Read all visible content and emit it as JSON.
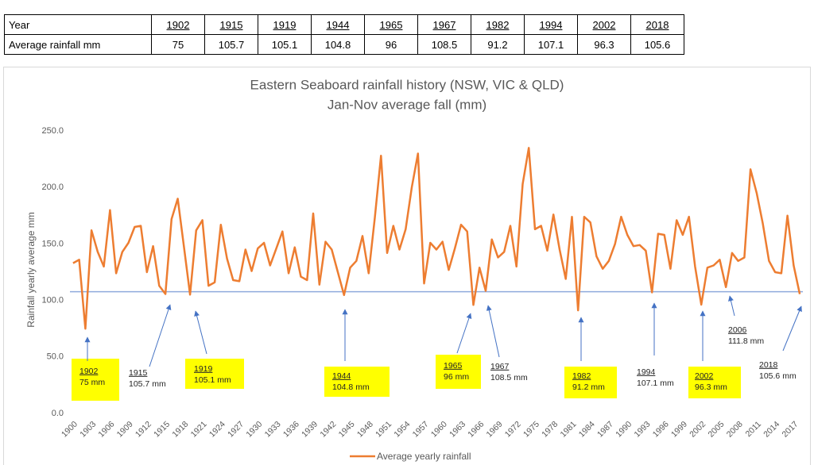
{
  "table": {
    "header": [
      "Year",
      "1902",
      "1915",
      "1919",
      "1944",
      "1965",
      "1967",
      "1982",
      "1994",
      "2002",
      "2018"
    ],
    "rows": [
      [
        "Average rainfall mm",
        75,
        105.7,
        105.1,
        104.8,
        96,
        108.5,
        91.2,
        107.1,
        96.3,
        105.6
      ]
    ]
  },
  "chart_data": {
    "type": "line",
    "title": "Eastern Seaboard rainfall history (NSW, VIC & QLD)",
    "subtitle": "Jan-Nov average fall (mm)",
    "y_label": "Rainfall yearly average mm",
    "x": [
      1900,
      1901,
      1902,
      1903,
      1904,
      1905,
      1906,
      1907,
      1908,
      1909,
      1910,
      1911,
      1912,
      1913,
      1914,
      1915,
      1916,
      1917,
      1918,
      1919,
      1920,
      1921,
      1922,
      1923,
      1924,
      1925,
      1926,
      1927,
      1928,
      1929,
      1930,
      1931,
      1932,
      1933,
      1934,
      1935,
      1936,
      1937,
      1938,
      1939,
      1940,
      1941,
      1942,
      1943,
      1944,
      1945,
      1946,
      1947,
      1948,
      1949,
      1950,
      1951,
      1952,
      1953,
      1954,
      1955,
      1956,
      1957,
      1958,
      1959,
      1960,
      1961,
      1962,
      1963,
      1964,
      1965,
      1966,
      1967,
      1968,
      1969,
      1970,
      1971,
      1972,
      1973,
      1974,
      1975,
      1976,
      1977,
      1978,
      1979,
      1980,
      1981,
      1982,
      1983,
      1984,
      1985,
      1986,
      1987,
      1988,
      1989,
      1990,
      1991,
      1992,
      1993,
      1994,
      1995,
      1996,
      1997,
      1998,
      1999,
      2000,
      2001,
      2002,
      2003,
      2004,
      2005,
      2006,
      2007,
      2008,
      2009,
      2010,
      2011,
      2012,
      2013,
      2014,
      2015,
      2016,
      2017,
      2018
    ],
    "series": [
      {
        "name": "Average yearly rainfall",
        "color": "#ed7d31",
        "values": [
          133,
          136,
          75,
          162,
          143,
          130,
          180,
          124,
          143,
          151,
          165,
          166,
          125,
          148,
          113,
          105.7,
          172,
          190,
          148,
          105.1,
          162,
          171,
          113,
          116,
          167,
          137,
          118,
          117,
          145,
          126,
          146,
          151,
          131,
          146,
          161,
          124,
          147,
          121,
          118,
          177,
          114,
          152,
          145,
          125,
          104.8,
          129,
          135,
          157,
          124,
          173,
          228,
          142,
          166,
          145,
          163,
          200,
          230,
          115,
          151,
          145,
          152,
          127,
          146,
          167,
          161,
          96,
          129,
          108.5,
          154,
          138,
          143,
          166,
          130,
          203,
          235,
          163,
          166,
          144,
          176,
          145,
          119,
          174,
          91.2,
          174,
          169,
          139,
          128,
          135,
          150,
          174,
          158,
          148,
          149,
          144,
          107.1,
          159,
          158,
          128,
          171,
          158,
          174,
          130,
          96.3,
          129,
          131,
          136,
          111.8,
          142,
          135,
          138,
          216,
          195,
          168,
          135,
          125,
          124,
          175,
          131,
          105.6
        ]
      }
    ],
    "xlim": [
      1899.5,
      2018.5
    ],
    "xticks": [
      1900,
      1903,
      1906,
      1909,
      1912,
      1915,
      1918,
      1921,
      1924,
      1927,
      1930,
      1933,
      1936,
      1939,
      1942,
      1945,
      1948,
      1951,
      1954,
      1957,
      1960,
      1963,
      1966,
      1969,
      1972,
      1975,
      1978,
      1981,
      1984,
      1987,
      1990,
      1993,
      1996,
      1999,
      2002,
      2005,
      2008,
      2011,
      2014,
      2017
    ],
    "ylim": [
      0,
      250
    ],
    "yticks": [
      {
        "value": 0,
        "label": "0.0"
      },
      {
        "value": 50,
        "label": "50.0"
      },
      {
        "value": 100,
        "label": "100.0"
      },
      {
        "value": 150,
        "label": "150.0"
      },
      {
        "value": 200,
        "label": "200.0"
      },
      {
        "value": 250,
        "label": "250.0"
      }
    ],
    "grid": false,
    "reference_line": {
      "value": 107.7,
      "color": "#8faadc"
    },
    "legend": "bottom",
    "annotations": [
      {
        "year": "1902",
        "label": "75 mm",
        "highlight": true
      },
      {
        "year": "1915",
        "label": "105.7 mm",
        "highlight": false
      },
      {
        "year": "1919",
        "label": "105.1 mm",
        "highlight": true
      },
      {
        "year": "1944",
        "label": "104.8 mm",
        "highlight": true
      },
      {
        "year": "1965",
        "label": "96 mm",
        "highlight": true
      },
      {
        "year": "1967",
        "label": "108.5 mm",
        "highlight": false
      },
      {
        "year": "1982",
        "label": "91.2 mm",
        "highlight": true
      },
      {
        "year": "1994",
        "label": "107.1 mm",
        "highlight": false
      },
      {
        "year": "2002",
        "label": "96.3 mm",
        "highlight": true
      },
      {
        "year": "2006",
        "label": "111.8 mm",
        "highlight": false
      },
      {
        "year": "2018",
        "label": "105.6 mm",
        "highlight": false
      }
    ]
  }
}
